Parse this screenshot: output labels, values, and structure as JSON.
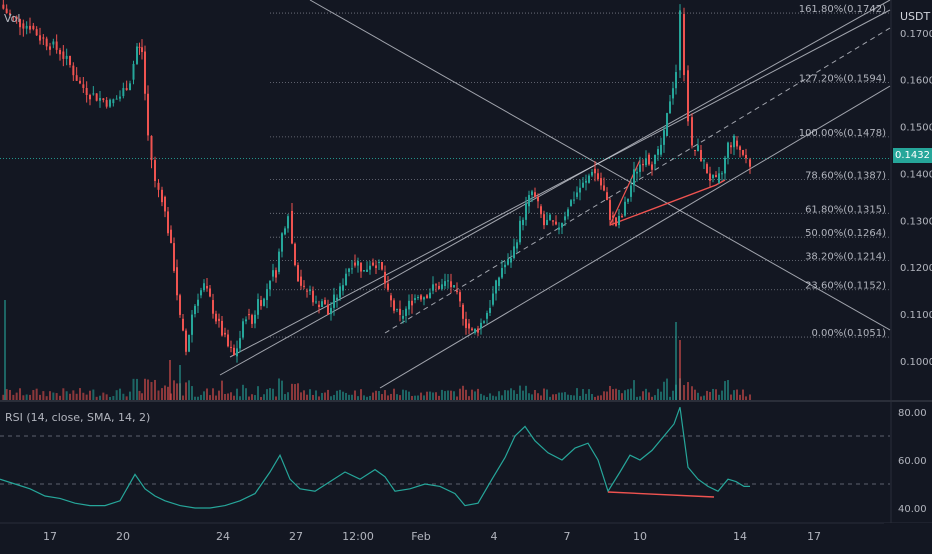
{
  "header": {
    "volume_label": "Vol",
    "unit": "USDT"
  },
  "colors": {
    "bg": "#131722",
    "up": "#26a69a",
    "down": "#ef5350",
    "grid": "#363a45",
    "text": "#b2b5be",
    "rsi_line": "#26a69a",
    "trend": "#d1d4dc",
    "divergence": "#ef5350"
  },
  "current_price": {
    "label": "0.1432",
    "value": 0.1432
  },
  "chart_data": [
    {
      "type": "candlestick",
      "title": "",
      "ylim": [
        0.0955,
        0.1745
      ],
      "y_ticks": [
        0.1,
        0.11,
        0.12,
        0.13,
        0.14,
        0.15,
        0.16,
        0.17
      ],
      "y_tick_labels": [
        "0.1000",
        "0.1100",
        "0.1200",
        "0.1300",
        "0.1400",
        "0.1500",
        "0.1600",
        "0.1700"
      ],
      "x_tick_labels": [
        "17",
        "20",
        "24",
        "27",
        "12:00",
        "Feb",
        "4",
        "7",
        "10",
        "14",
        "17"
      ],
      "fib_levels": [
        {
          "label": "161.80%(0.1742)",
          "value": 0.1742
        },
        {
          "label": "127.20%(0.1594)",
          "value": 0.1594
        },
        {
          "label": "100.00%(0.1478)",
          "value": 0.1478
        },
        {
          "label": "78.60%(0.1387)",
          "value": 0.1387
        },
        {
          "label": "61.80%(0.1315)",
          "value": 0.1315
        },
        {
          "label": "50.00%(0.1264)",
          "value": 0.1264
        },
        {
          "label": "38.20%(0.1214)",
          "value": 0.1214
        },
        {
          "label": "23.60%(0.1152)",
          "value": 0.1152
        },
        {
          "label": "0.00%(0.1051)",
          "value": 0.1051
        }
      ],
      "price_path": [
        [
          0,
          0.176
        ],
        [
          10,
          0.1735
        ],
        [
          20,
          0.172
        ],
        [
          30,
          0.1715
        ],
        [
          40,
          0.169
        ],
        [
          50,
          0.1675
        ],
        [
          60,
          0.166
        ],
        [
          70,
          0.163
        ],
        [
          80,
          0.159
        ],
        [
          90,
          0.157
        ],
        [
          100,
          0.156
        ],
        [
          110,
          0.155
        ],
        [
          120,
          0.1565
        ],
        [
          130,
          0.16
        ],
        [
          137,
          0.167
        ],
        [
          142,
          0.166
        ],
        [
          148,
          0.148
        ],
        [
          155,
          0.138
        ],
        [
          162,
          0.135
        ],
        [
          168,
          0.128
        ],
        [
          174,
          0.12
        ],
        [
          180,
          0.109
        ],
        [
          186,
          0.102
        ],
        [
          192,
          0.11
        ],
        [
          198,
          0.114
        ],
        [
          204,
          0.116
        ],
        [
          210,
          0.113
        ],
        [
          216,
          0.109
        ],
        [
          222,
          0.106
        ],
        [
          228,
          0.103
        ],
        [
          234,
          0.101
        ],
        [
          240,
          0.105
        ],
        [
          246,
          0.11
        ],
        [
          252,
          0.108
        ],
        [
          258,
          0.113
        ],
        [
          264,
          0.113
        ],
        [
          270,
          0.118
        ],
        [
          276,
          0.119
        ],
        [
          282,
          0.127
        ],
        [
          288,
          0.132
        ],
        [
          292,
          0.125
        ],
        [
          298,
          0.118
        ],
        [
          304,
          0.115
        ],
        [
          310,
          0.115
        ],
        [
          316,
          0.112
        ],
        [
          322,
          0.113
        ],
        [
          328,
          0.11
        ],
        [
          334,
          0.113
        ],
        [
          340,
          0.115
        ],
        [
          346,
          0.119
        ],
        [
          352,
          0.121
        ],
        [
          358,
          0.121
        ],
        [
          364,
          0.119
        ],
        [
          370,
          0.121
        ],
        [
          376,
          0.121
        ],
        [
          382,
          0.119
        ],
        [
          388,
          0.114
        ],
        [
          394,
          0.111
        ],
        [
          400,
          0.109
        ],
        [
          406,
          0.111
        ],
        [
          412,
          0.113
        ],
        [
          418,
          0.114
        ],
        [
          424,
          0.114
        ],
        [
          430,
          0.115
        ],
        [
          436,
          0.116
        ],
        [
          442,
          0.116
        ],
        [
          448,
          0.117
        ],
        [
          454,
          0.115
        ],
        [
          460,
          0.112
        ],
        [
          466,
          0.108
        ],
        [
          472,
          0.106
        ],
        [
          478,
          0.107
        ],
        [
          484,
          0.109
        ],
        [
          490,
          0.112
        ],
        [
          496,
          0.116
        ],
        [
          502,
          0.12
        ],
        [
          508,
          0.121
        ],
        [
          514,
          0.124
        ],
        [
          520,
          0.129
        ],
        [
          526,
          0.133
        ],
        [
          532,
          0.136
        ],
        [
          538,
          0.133
        ],
        [
          544,
          0.129
        ],
        [
          550,
          0.13
        ],
        [
          556,
          0.128
        ],
        [
          562,
          0.13
        ],
        [
          568,
          0.133
        ],
        [
          574,
          0.135
        ],
        [
          580,
          0.137
        ],
        [
          586,
          0.138
        ],
        [
          592,
          0.141
        ],
        [
          598,
          0.139
        ],
        [
          604,
          0.136
        ],
        [
          610,
          0.131
        ],
        [
          616,
          0.129
        ],
        [
          622,
          0.131
        ],
        [
          628,
          0.135
        ],
        [
          634,
          0.14
        ],
        [
          640,
          0.142
        ],
        [
          646,
          0.144
        ],
        [
          652,
          0.142
        ],
        [
          658,
          0.144
        ],
        [
          664,
          0.148
        ],
        [
          670,
          0.156
        ],
        [
          676,
          0.162
        ],
        [
          680,
          0.174
        ],
        [
          684,
          0.162
        ],
        [
          688,
          0.152
        ],
        [
          692,
          0.145
        ],
        [
          698,
          0.145
        ],
        [
          704,
          0.142
        ],
        [
          710,
          0.139
        ],
        [
          716,
          0.138
        ],
        [
          722,
          0.14
        ],
        [
          728,
          0.146
        ],
        [
          734,
          0.147
        ],
        [
          740,
          0.145
        ],
        [
          746,
          0.143
        ],
        [
          750,
          0.142
        ]
      ],
      "rsi": {
        "label": "RSI (14, close, SMA, 14, 2)",
        "ylim": [
          37,
          83
        ],
        "y_ticks": [
          40,
          60,
          80
        ],
        "y_tick_labels": [
          "40.00",
          "60.00",
          "80.00"
        ],
        "bands": [
          70,
          50
        ],
        "values": [
          [
            0,
            52
          ],
          [
            15,
            50
          ],
          [
            30,
            48
          ],
          [
            45,
            45
          ],
          [
            60,
            44
          ],
          [
            75,
            42
          ],
          [
            90,
            41
          ],
          [
            105,
            41
          ],
          [
            120,
            43
          ],
          [
            135,
            54
          ],
          [
            145,
            48
          ],
          [
            155,
            45
          ],
          [
            165,
            43
          ],
          [
            180,
            41
          ],
          [
            195,
            40
          ],
          [
            210,
            40
          ],
          [
            225,
            41
          ],
          [
            240,
            43
          ],
          [
            255,
            46
          ],
          [
            270,
            55
          ],
          [
            280,
            62
          ],
          [
            290,
            52
          ],
          [
            300,
            48
          ],
          [
            315,
            47
          ],
          [
            330,
            51
          ],
          [
            345,
            55
          ],
          [
            360,
            52
          ],
          [
            375,
            56
          ],
          [
            385,
            53
          ],
          [
            395,
            47
          ],
          [
            410,
            48
          ],
          [
            425,
            50
          ],
          [
            440,
            49
          ],
          [
            455,
            46
          ],
          [
            465,
            41
          ],
          [
            478,
            42
          ],
          [
            492,
            52
          ],
          [
            505,
            61
          ],
          [
            515,
            70
          ],
          [
            525,
            74
          ],
          [
            535,
            68
          ],
          [
            548,
            63
          ],
          [
            562,
            60
          ],
          [
            575,
            65
          ],
          [
            588,
            67
          ],
          [
            598,
            60
          ],
          [
            608,
            47
          ],
          [
            620,
            55
          ],
          [
            630,
            62
          ],
          [
            640,
            60
          ],
          [
            652,
            64
          ],
          [
            664,
            70
          ],
          [
            674,
            75
          ],
          [
            680,
            82
          ],
          [
            688,
            57
          ],
          [
            698,
            52
          ],
          [
            708,
            49
          ],
          [
            718,
            47
          ],
          [
            728,
            52
          ],
          [
            736,
            51
          ],
          [
            744,
            49
          ],
          [
            750,
            49
          ]
        ]
      }
    }
  ]
}
